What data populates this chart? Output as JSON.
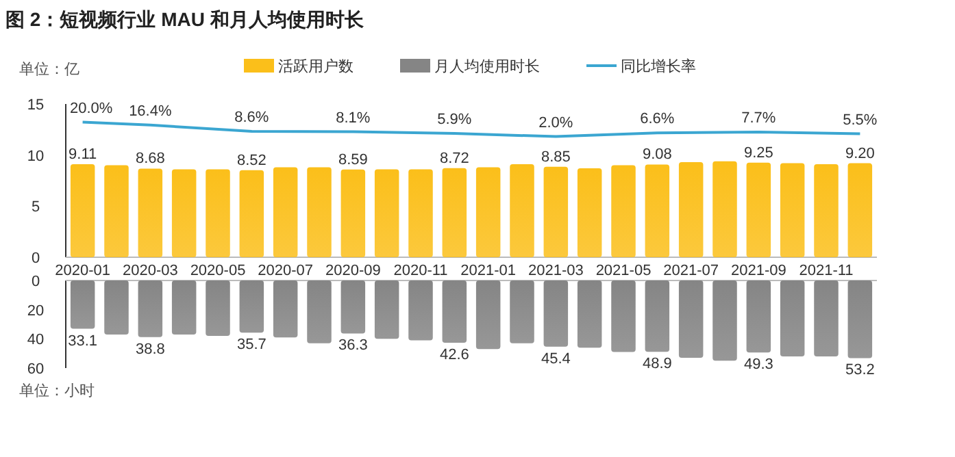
{
  "chart_data": [
    {
      "type": "bar",
      "title": "图 2：短视频行业 MAU 和月人均使用时长",
      "ylabel": "单位：亿",
      "categories": [
        "2020-01",
        null,
        "2020-03",
        null,
        "2020-05",
        null,
        "2020-07",
        null,
        "2020-09",
        null,
        "2020-11",
        null,
        "2021-01",
        null,
        "2021-03",
        null,
        "2021-05",
        null,
        "2021-07",
        null,
        "2021-09",
        null,
        "2021-11",
        null
      ],
      "ylim": [
        0,
        15
      ],
      "yticks": [
        0,
        5,
        10,
        15
      ],
      "y2lim": [
        -150,
        43
      ],
      "legend": "top",
      "grid": false,
      "series": [
        {
          "name": "活跃用户数",
          "color": "#fbbf1a",
          "values": [
            9.11,
            9.0,
            8.68,
            8.6,
            8.6,
            8.52,
            8.8,
            8.8,
            8.59,
            8.6,
            8.6,
            8.72,
            8.8,
            9.1,
            8.85,
            8.7,
            9.0,
            9.08,
            9.3,
            9.4,
            9.25,
            9.2,
            9.1,
            9.2
          ],
          "value_labels": [
            "9.11",
            null,
            "8.68",
            null,
            null,
            "8.52",
            null,
            null,
            "8.59",
            null,
            null,
            "8.72",
            null,
            null,
            "8.85",
            null,
            null,
            "9.08",
            null,
            null,
            "9.25",
            null,
            null,
            "9.20"
          ]
        },
        {
          "name": "同比增长率",
          "type": "line",
          "axis": "y2",
          "color": "#3ba6d1",
          "values": [
            20.0,
            null,
            16.4,
            null,
            null,
            8.6,
            null,
            null,
            8.1,
            null,
            null,
            5.9,
            null,
            null,
            2.0,
            null,
            null,
            6.6,
            null,
            null,
            7.7,
            null,
            null,
            5.5
          ],
          "value_labels": [
            "20.0%",
            null,
            "16.4%",
            null,
            null,
            "8.6%",
            null,
            null,
            "8.1%",
            null,
            null,
            "5.9%",
            null,
            null,
            "2.0%",
            null,
            null,
            "6.6%",
            null,
            null,
            "7.7%",
            null,
            null,
            "5.5%"
          ]
        }
      ]
    },
    {
      "type": "bar",
      "ylabel": "单位：小时",
      "categories": [
        null,
        null,
        null,
        null,
        null,
        null,
        null,
        null,
        null,
        null,
        null,
        null,
        null,
        null,
        null,
        null,
        null,
        null,
        null,
        null,
        null,
        null,
        null,
        null
      ],
      "ylim": [
        60,
        0
      ],
      "yticks": [
        0,
        20,
        40,
        60
      ],
      "tick_labels": "y",
      "grid": false,
      "series": [
        {
          "name": "月人均使用时长",
          "color": "#858585",
          "values": [
            33.1,
            37,
            38.8,
            37,
            38,
            35.7,
            39,
            43,
            36.3,
            40,
            41,
            42.6,
            47,
            43,
            45.4,
            46,
            49,
            48.9,
            53,
            55,
            49.3,
            52,
            52,
            53.2
          ],
          "value_labels": [
            "33.1",
            null,
            "38.8",
            null,
            null,
            "35.7",
            null,
            null,
            "36.3",
            null,
            null,
            "42.6",
            null,
            null,
            "45.4",
            null,
            null,
            "48.9",
            null,
            null,
            "49.3",
            null,
            null,
            "53.2"
          ]
        }
      ]
    }
  ]
}
